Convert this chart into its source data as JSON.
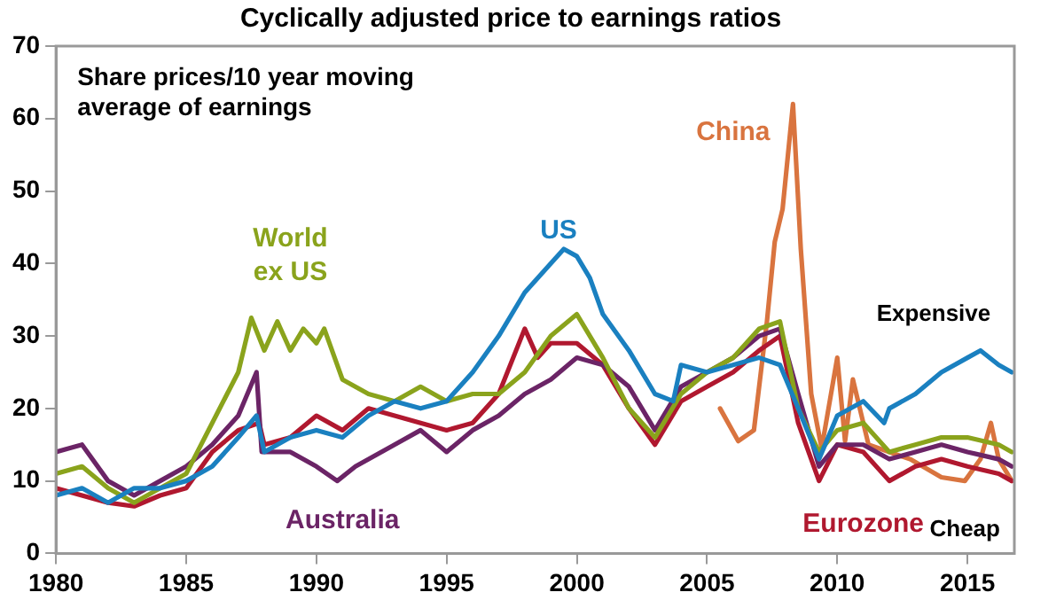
{
  "chart_data": {
    "type": "line",
    "title": "Cyclically adjusted price to earnings ratios",
    "annotations": [
      "Share prices/10 year moving average of earnings",
      "Expensive",
      "Cheap"
    ],
    "xlim": [
      1980,
      2016.8
    ],
    "xticks": [
      1980,
      1985,
      1990,
      1995,
      2000,
      2005,
      2010,
      2015
    ],
    "ylim": [
      0,
      70
    ],
    "yticks": [
      0,
      10,
      20,
      30,
      40,
      50,
      60,
      70
    ],
    "grid": false,
    "legend": false,
    "marker": "none",
    "line_style": "solid",
    "series": [
      {
        "name": "US",
        "color": "#1a80c0",
        "x": [
          1980,
          1981,
          1982,
          1983,
          1984,
          1985,
          1986,
          1987,
          1987.7,
          1988,
          1989,
          1990,
          1991,
          1992,
          1993,
          1994,
          1995,
          1996,
          1997,
          1998,
          1999,
          1999.5,
          2000,
          2000.5,
          2001,
          2002,
          2003,
          2003.7,
          2004,
          2005,
          2006,
          2007,
          2007.8,
          2008.5,
          2009.3,
          2010,
          2011,
          2011.8,
          2012,
          2013,
          2014,
          2015,
          2015.5,
          2016.2,
          2016.7
        ],
        "values": [
          8,
          9,
          7,
          9,
          9,
          10,
          12,
          16,
          19,
          14,
          16,
          17,
          16,
          19,
          21,
          20,
          21,
          25,
          30,
          36,
          40,
          42,
          41,
          38,
          33,
          28,
          22,
          21,
          26,
          25,
          26,
          27,
          26,
          20,
          13,
          19,
          21,
          18,
          20,
          22,
          25,
          27,
          28,
          26,
          25
        ]
      },
      {
        "name": "World ex US",
        "color": "#8aa31c",
        "x": [
          1980,
          1981,
          1982,
          1983,
          1984,
          1985,
          1986,
          1987,
          1987.5,
          1988,
          1988.5,
          1989,
          1989.5,
          1990,
          1990.3,
          1991,
          1992,
          1993,
          1994,
          1995,
          1996,
          1997,
          1998,
          1999,
          2000,
          2001,
          2002,
          2003,
          2004,
          2005,
          2006,
          2007,
          2007.8,
          2008.5,
          2009.3,
          2010,
          2011,
          2012,
          2013,
          2014,
          2015,
          2016.2,
          2016.7
        ],
        "values": [
          11,
          12,
          9,
          7,
          9,
          11,
          18,
          25,
          32.5,
          28,
          32,
          28,
          31,
          29,
          31,
          24,
          22,
          21,
          23,
          21,
          22,
          22,
          25,
          30,
          33,
          27,
          20,
          16,
          22,
          25,
          27,
          31,
          32,
          20,
          14,
          17,
          18,
          14,
          15,
          16,
          16,
          15,
          14
        ]
      },
      {
        "name": "Australia",
        "color": "#6b2466",
        "x": [
          1980,
          1981,
          1982,
          1983,
          1984,
          1985,
          1986,
          1987,
          1987.7,
          1987.9,
          1989,
          1990,
          1990.8,
          1991.5,
          1993,
          1994,
          1995,
          1996,
          1997,
          1998,
          1999,
          2000,
          2001,
          2002,
          2003,
          2004,
          2005,
          2006,
          2007,
          2007.8,
          2008.5,
          2009.3,
          2010,
          2011,
          2012,
          2013,
          2014,
          2015,
          2016.2,
          2016.7
        ],
        "values": [
          14,
          15,
          10,
          8,
          10,
          12,
          15,
          19,
          25,
          14,
          14,
          12,
          10,
          12,
          15,
          17,
          14,
          17,
          19,
          22,
          24,
          27,
          26,
          23,
          17,
          23,
          25,
          27,
          30,
          31,
          22,
          12,
          15,
          15,
          13,
          14,
          15,
          14,
          13,
          12
        ]
      },
      {
        "name": "Eurozone",
        "color": "#b0182f",
        "x": [
          1980,
          1982,
          1983,
          1984,
          1985,
          1986,
          1987,
          1987.8,
          1988,
          1989,
          1990,
          1991,
          1992,
          1993,
          1994,
          1995,
          1996,
          1997,
          1998,
          1998.5,
          1999,
          2000,
          2001,
          2002,
          2003,
          2004,
          2005,
          2006,
          2007,
          2007.8,
          2008.5,
          2009.3,
          2010,
          2011,
          2012,
          2013,
          2014,
          2015,
          2016.2,
          2016.7
        ],
        "values": [
          9,
          7,
          6.5,
          8,
          9,
          14,
          17,
          18,
          15,
          16,
          19,
          17,
          20,
          19,
          18,
          17,
          18,
          22,
          31,
          27,
          29,
          29,
          26,
          20,
          15,
          21,
          23,
          25,
          28,
          30,
          18,
          10,
          15,
          14,
          10,
          12,
          13,
          12,
          11,
          10
        ]
      },
      {
        "name": "China",
        "color": "#d9743f",
        "x": [
          2005.5,
          2006.2,
          2006.8,
          2007.3,
          2007.6,
          2007.9,
          2008.3,
          2008.6,
          2009,
          2009.4,
          2010,
          2010.3,
          2010.6,
          2011.2,
          2012,
          2012.8,
          2014,
          2014.9,
          2015.5,
          2015.9,
          2016.2,
          2016.7
        ],
        "values": [
          20,
          15.5,
          17,
          32,
          43,
          47.5,
          62,
          42,
          22,
          14.5,
          27,
          15.5,
          24,
          15,
          14,
          13,
          10.5,
          10,
          13,
          18,
          13,
          10
        ]
      }
    ]
  }
}
